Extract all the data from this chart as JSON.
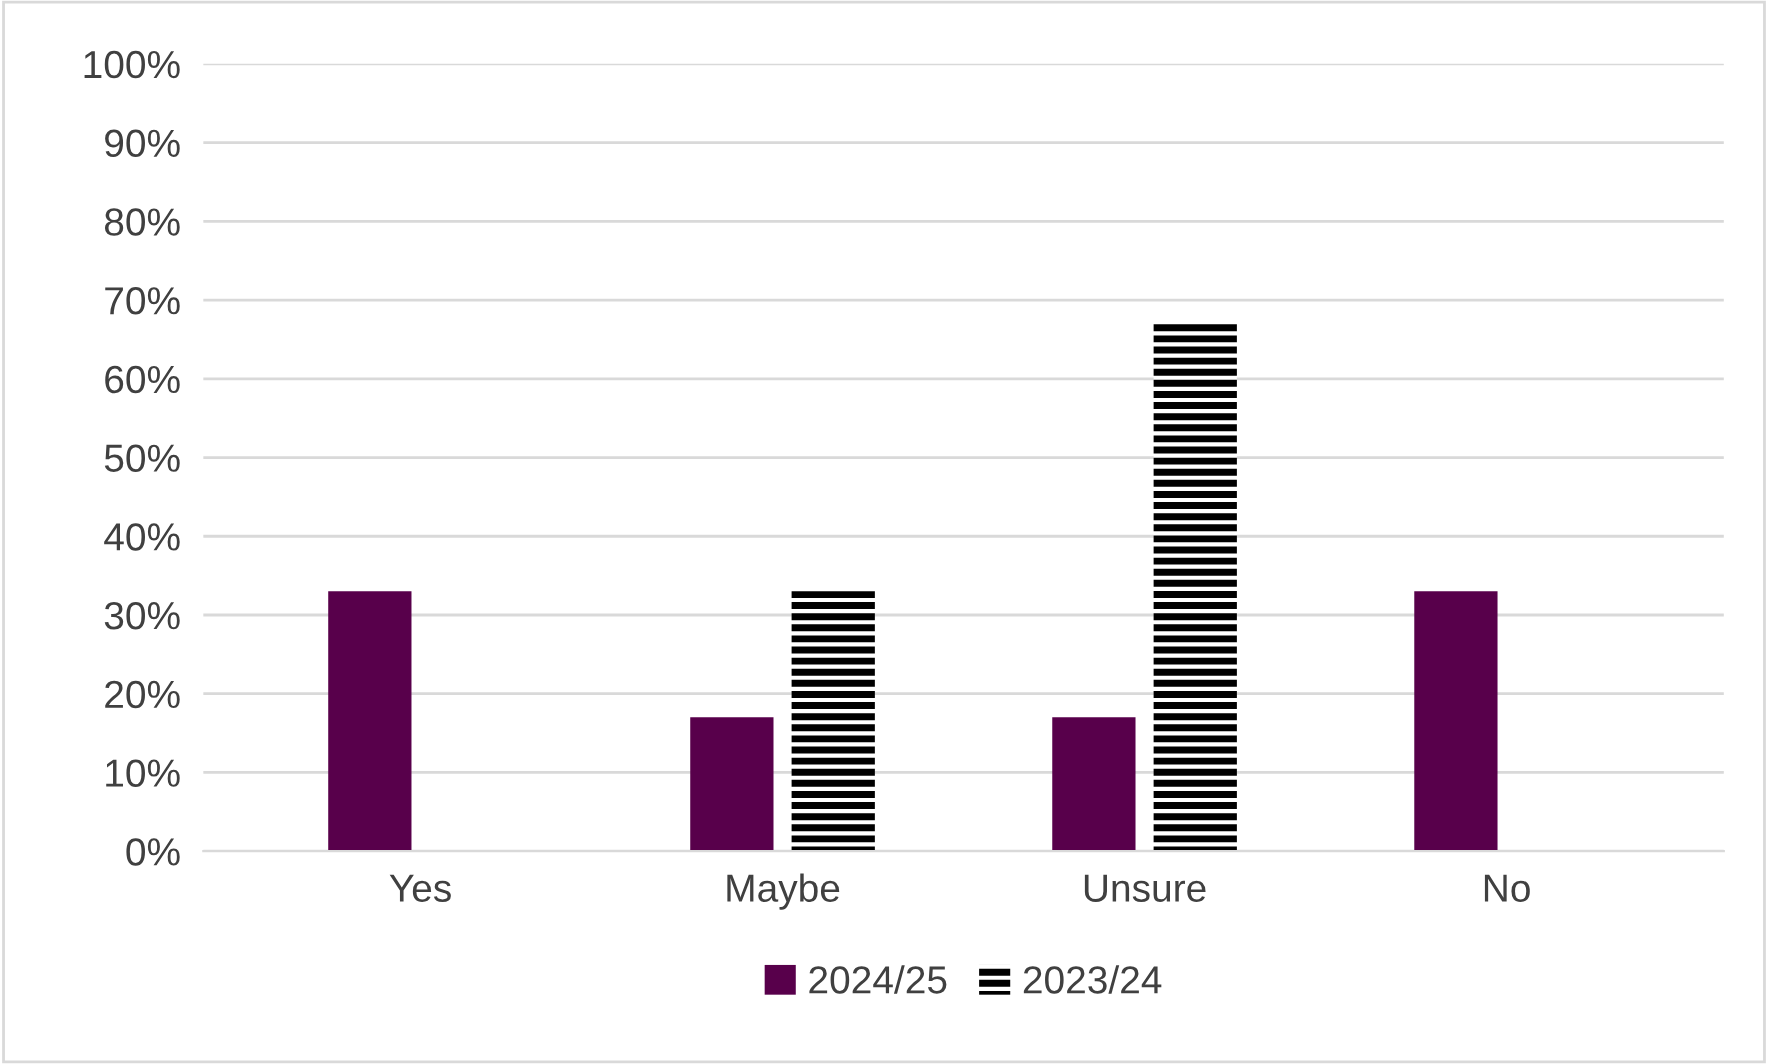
{
  "chart_data": {
    "type": "bar",
    "categories": [
      "Yes",
      "Maybe",
      "Unsure",
      "No"
    ],
    "series": [
      {
        "name": "2024/25",
        "color": "#58004b",
        "values": [
          33,
          17,
          17,
          33
        ]
      },
      {
        "name": "2023/24",
        "color": "#000000",
        "values": [
          0,
          33,
          67,
          0
        ]
      }
    ],
    "ylim": [
      0,
      100
    ],
    "yticks": [
      {
        "value": 0,
        "label": "0%"
      },
      {
        "value": 10,
        "label": "10%"
      },
      {
        "value": 20,
        "label": "20%"
      },
      {
        "value": 30,
        "label": "30%"
      },
      {
        "value": 40,
        "label": "40%"
      },
      {
        "value": 50,
        "label": "50%"
      },
      {
        "value": 60,
        "label": "60%"
      },
      {
        "value": 70,
        "label": "70%"
      },
      {
        "value": 80,
        "label": "80%"
      },
      {
        "value": 90,
        "label": "90%"
      },
      {
        "value": 100,
        "label": "100%"
      }
    ],
    "grid": "y",
    "legend": "bottom"
  }
}
